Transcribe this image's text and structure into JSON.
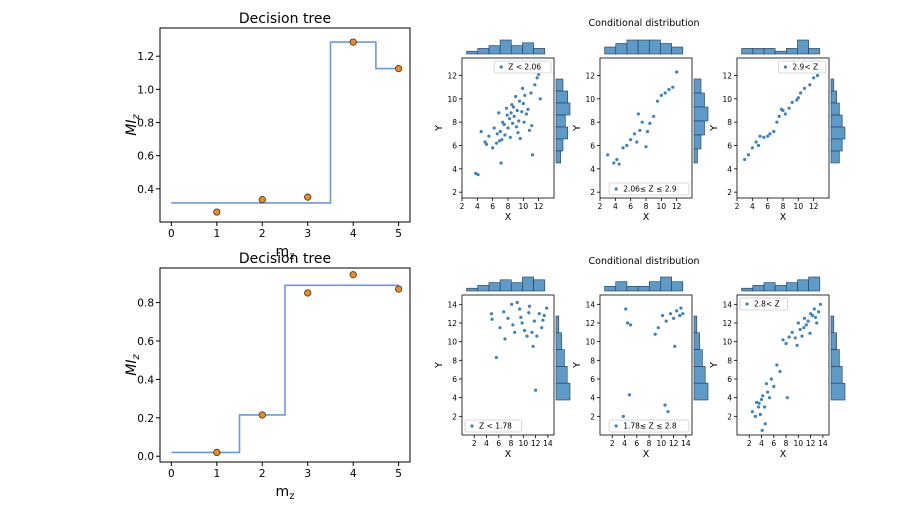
{
  "chart_data": [
    {
      "type": "line",
      "role": "decision-tree",
      "title": "Decision tree",
      "xlabel": "m",
      "xlabel_sub": "z",
      "ylabel": "MI",
      "ylabel_sub": "z",
      "xlim": [
        -0.25,
        5.25
      ],
      "ylim": [
        0.2,
        1.37
      ],
      "xticks": [
        0,
        1,
        2,
        3,
        4,
        5
      ],
      "yticks": [
        0.4,
        0.6,
        0.8,
        1.0,
        1.2
      ],
      "ytick_labels": [
        "0.4",
        "0.6",
        "0.8",
        "1.0",
        "1.2"
      ],
      "step_x": [
        0,
        3.5,
        3.5,
        4.5,
        4.5,
        5
      ],
      "step_y": [
        0.315,
        0.315,
        1.285,
        1.285,
        1.125,
        1.125
      ],
      "points_x": [
        1,
        2,
        3,
        4,
        5
      ],
      "points_y": [
        0.26,
        0.335,
        0.35,
        1.285,
        1.125
      ],
      "line_color": "#6f97dd",
      "point_color": "#f28c16"
    },
    {
      "type": "line",
      "role": "decision-tree",
      "title": "Decision tree",
      "xlabel": "m",
      "xlabel_sub": "z",
      "ylabel": "MI",
      "ylabel_sub": "z",
      "xlim": [
        -0.25,
        5.25
      ],
      "ylim": [
        -0.03,
        0.98
      ],
      "xticks": [
        0,
        1,
        2,
        3,
        4,
        5
      ],
      "yticks": [
        0.0,
        0.2,
        0.4,
        0.6,
        0.8
      ],
      "ytick_labels": [
        "0.0",
        "0.2",
        "0.4",
        "0.6",
        "0.8"
      ],
      "step_x": [
        0,
        1.5,
        1.5,
        2.5,
        2.5,
        5
      ],
      "step_y": [
        0.02,
        0.02,
        0.215,
        0.215,
        0.89,
        0.89
      ],
      "points_x": [
        1,
        2,
        3,
        4,
        5
      ],
      "points_y": [
        0.02,
        0.215,
        0.85,
        0.945,
        0.87
      ],
      "line_color": "#6f97dd",
      "point_color": "#f28c16"
    },
    {
      "type": "scatter",
      "role": "conditional-group",
      "title": "Conditional distribution",
      "xlabel": "X",
      "ylabel": "Y",
      "xlim": [
        2,
        14
      ],
      "ylim": [
        1.5,
        13.5
      ],
      "xticks": [
        2,
        4,
        6,
        8,
        10,
        12
      ],
      "yticks": [
        2,
        4,
        6,
        8,
        10,
        12
      ],
      "point_color": "#3b83c0",
      "hist_color": "#5d9ac8",
      "panels": [
        {
          "legend": "Z < 2.06",
          "legend_pos": "top-right",
          "hist_top": [
            1,
            2,
            3,
            5,
            3,
            4,
            2
          ],
          "hist_right": [
            3,
            5,
            6,
            4,
            5,
            3,
            2
          ],
          "x": [
            3.8,
            4.1,
            4.5,
            5.0,
            5.5,
            6.0,
            6.2,
            6.5,
            6.8,
            7.0,
            7.2,
            7.3,
            7.5,
            7.6,
            7.8,
            8.0,
            8.2,
            8.3,
            8.5,
            8.6,
            8.8,
            9.0,
            9.1,
            9.2,
            9.4,
            9.5,
            9.6,
            9.8,
            10.0,
            10.2,
            10.4,
            10.6,
            10.8,
            11.0,
            11.2,
            11.5,
            11.8,
            12.0,
            5.2,
            6.6,
            7.9,
            8.7,
            9.3,
            10.1,
            7.1,
            8.4,
            9.9,
            11.1,
            12.2,
            6.9
          ],
          "y": [
            3.6,
            3.5,
            7.2,
            6.3,
            6.8,
            5.8,
            7.5,
            6.2,
            8.8,
            7.2,
            6.5,
            8.0,
            7.8,
            6.9,
            9.2,
            7.5,
            8.3,
            6.7,
            9.5,
            7.9,
            8.5,
            10.2,
            7.6,
            9.0,
            8.1,
            9.8,
            6.6,
            8.9,
            9.6,
            10.3,
            8.7,
            9.1,
            7.3,
            10.5,
            5.2,
            11.2,
            11.8,
            12.1,
            6.1,
            7.0,
            8.6,
            9.3,
            7.1,
            8.0,
            4.5,
            8.8,
            10.9,
            7.7,
            10.0,
            6.4
          ]
        },
        {
          "legend": "2.06≤ Z ≤ 2.9",
          "legend_pos": "bottom-right",
          "hist_top": [
            2,
            3,
            4,
            4,
            4,
            3,
            2
          ],
          "hist_right": [
            2,
            3,
            4,
            3,
            2,
            1
          ],
          "x": [
            3.0,
            3.8,
            4.2,
            4.5,
            5.0,
            5.5,
            6.0,
            6.5,
            7.0,
            7.2,
            7.5,
            8.0,
            8.5,
            9.0,
            9.5,
            10.0,
            10.5,
            11.0,
            11.5,
            12.0,
            6.8,
            8.2
          ],
          "y": [
            5.2,
            4.5,
            4.8,
            4.4,
            5.8,
            6.0,
            6.5,
            7.0,
            8.7,
            7.3,
            8.0,
            5.9,
            7.9,
            8.5,
            9.8,
            10.3,
            10.5,
            10.8,
            11.0,
            12.3,
            6.3,
            7.2
          ]
        },
        {
          "legend": "2.9< Z",
          "legend_pos": "top-right",
          "hist_top": [
            2,
            2,
            2,
            1,
            2,
            5,
            2
          ],
          "hist_right": [
            1,
            2,
            3,
            4,
            5,
            4,
            3
          ],
          "x": [
            3.0,
            3.5,
            4.0,
            4.5,
            5.0,
            5.5,
            6.0,
            6.3,
            6.8,
            7.2,
            7.5,
            8.0,
            8.3,
            8.8,
            9.2,
            9.8,
            10.0,
            10.3,
            10.8,
            11.5,
            12.0,
            12.5,
            4.8,
            7.8
          ],
          "y": [
            4.8,
            5.2,
            5.8,
            6.3,
            6.8,
            6.7,
            6.8,
            7.0,
            7.2,
            8.0,
            8.5,
            9.0,
            8.7,
            9.2,
            9.7,
            9.9,
            10.1,
            10.5,
            10.9,
            11.2,
            11.8,
            12.0,
            6.0,
            9.1
          ]
        }
      ]
    },
    {
      "type": "scatter",
      "role": "conditional-group",
      "title": "Conditional distribution",
      "xlabel": "X",
      "ylabel": "Y",
      "xlim": [
        0,
        15
      ],
      "ylim": [
        0,
        15
      ],
      "xticks": [
        2,
        4,
        6,
        8,
        10,
        12,
        14
      ],
      "yticks": [
        2,
        4,
        6,
        8,
        10,
        12,
        14
      ],
      "point_color": "#3b83c0",
      "hist_color": "#5d9ac8",
      "panels": [
        {
          "legend": "Z < 1.78",
          "legend_pos": "bottom-left",
          "hist_top": [
            1,
            2,
            3,
            4,
            3,
            5,
            4
          ],
          "hist_right": [
            1,
            2,
            3,
            4,
            5
          ],
          "x": [
            4.8,
            5.6,
            6.2,
            7.0,
            7.5,
            8.1,
            8.6,
            9.0,
            9.4,
            9.8,
            10.2,
            10.6,
            11.0,
            11.4,
            11.8,
            12.2,
            12.6,
            13.0,
            13.4,
            13.8,
            4.9,
            6.8,
            8.3,
            9.6,
            10.9,
            12.0,
            13.2,
            11.6
          ],
          "y": [
            13.0,
            8.3,
            11.5,
            10.3,
            12.5,
            14.0,
            11.0,
            14.2,
            13.5,
            12.0,
            11.2,
            10.6,
            13.8,
            11.0,
            12.2,
            10.6,
            13.0,
            11.5,
            12.8,
            13.6,
            12.4,
            13.2,
            11.8,
            12.6,
            13.1,
            4.8,
            12.3,
            9.5
          ]
        },
        {
          "legend": "1.78≤ Z ≤ 2.8",
          "legend_pos": "bottom-right",
          "hist_top": [
            1,
            2,
            1,
            1,
            2,
            3,
            2
          ],
          "hist_right": [
            1,
            2,
            3,
            4,
            5
          ],
          "x": [
            4.2,
            4.5,
            5.0,
            4.8,
            9.0,
            9.5,
            10.2,
            10.8,
            11.5,
            12.0,
            12.5,
            13.0,
            13.5,
            10.6,
            12.2,
            11.1,
            13.2,
            3.8
          ],
          "y": [
            13.5,
            12.0,
            11.8,
            4.3,
            10.8,
            11.5,
            12.8,
            12.2,
            13.0,
            12.5,
            13.3,
            12.8,
            13.0,
            3.2,
            9.5,
            2.5,
            13.6,
            2.0
          ]
        },
        {
          "legend": "2.8< Z",
          "legend_pos": "top-left",
          "hist_top": [
            1,
            2,
            3,
            2,
            3,
            4,
            5
          ],
          "hist_right": [
            1,
            2,
            3,
            4,
            5
          ],
          "x": [
            2.5,
            3.0,
            3.2,
            3.5,
            3.8,
            4.0,
            4.2,
            4.5,
            4.8,
            5.0,
            5.3,
            5.6,
            6.0,
            6.5,
            7.0,
            7.5,
            8.0,
            8.5,
            9.0,
            9.5,
            10.0,
            10.3,
            10.6,
            11.0,
            11.3,
            11.6,
            12.0,
            12.3,
            12.6,
            13.0,
            13.3,
            13.6,
            4.1,
            4.6,
            3.6,
            9.8,
            10.9,
            12.8,
            11.9,
            8.2
          ],
          "y": [
            2.5,
            2.0,
            3.5,
            3.0,
            2.2,
            3.8,
            4.2,
            3.0,
            5.5,
            4.6,
            4.0,
            6.0,
            5.2,
            7.5,
            6.8,
            10.2,
            9.8,
            10.5,
            11.0,
            10.4,
            12.0,
            11.3,
            10.6,
            12.5,
            11.8,
            12.2,
            13.0,
            12.8,
            13.5,
            12.0,
            13.2,
            14.0,
            0.5,
            1.2,
            3.4,
            9.6,
            11.5,
            12.6,
            10.9,
            4.0
          ]
        }
      ]
    }
  ]
}
